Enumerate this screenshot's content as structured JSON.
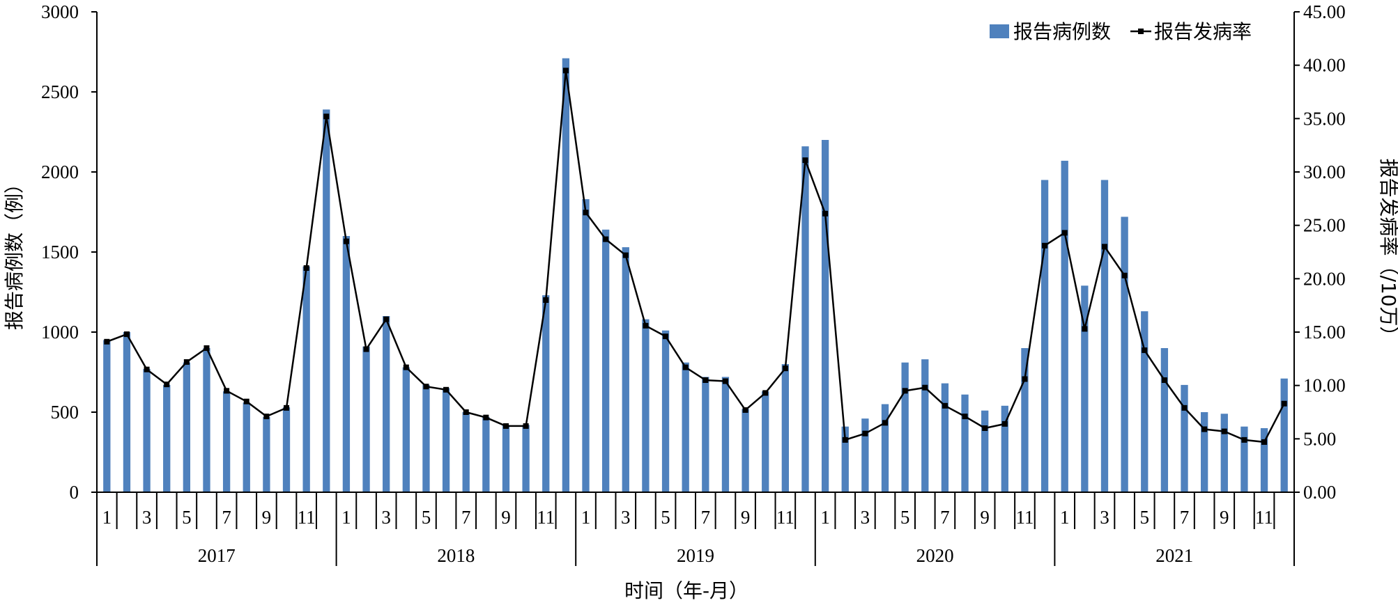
{
  "chart_data": {
    "type": "bar+line",
    "y_left": {
      "label": "报告病例数（例）",
      "range": [
        0,
        3000
      ],
      "ticks": [
        "0",
        "500",
        "1000",
        "1500",
        "2000",
        "2500",
        "3000"
      ]
    },
    "y_right": {
      "label": "报告发病率（/10万）",
      "range": [
        0,
        45
      ],
      "ticks": [
        "0.00",
        "5.00",
        "10.00",
        "15.00",
        "20.00",
        "25.00",
        "30.00",
        "35.00",
        "40.00",
        "45.00"
      ]
    },
    "x_axis": {
      "label": "时间（年-月）",
      "month_labels": [
        "1",
        "",
        "3",
        "",
        "5",
        "",
        "7",
        "",
        "9",
        "",
        "11",
        ""
      ],
      "years": [
        "2017",
        "2018",
        "2019",
        "2020",
        "2021"
      ]
    },
    "legend": {
      "position": "top-right",
      "bar_label": "报告病例数",
      "line_label": "报告发病率"
    },
    "colors": {
      "bar": "#4f81bd",
      "line": "#000000"
    },
    "series": [
      {
        "name": "报告病例数",
        "type": "bar",
        "axis": "left",
        "values": [
          950,
          1000,
          770,
          670,
          810,
          900,
          630,
          560,
          470,
          530,
          1410,
          2390,
          1600,
          910,
          1100,
          780,
          670,
          650,
          500,
          470,
          420,
          420,
          1230,
          2710,
          1830,
          1640,
          1530,
          1080,
          1010,
          810,
          720,
          720,
          520,
          630,
          800,
          2160,
          2200,
          410,
          460,
          550,
          810,
          830,
          680,
          610,
          510,
          540,
          900,
          1950,
          2070,
          1290,
          1950,
          1720,
          1130,
          900,
          670,
          500,
          490,
          410,
          400,
          710
        ]
      },
      {
        "name": "报告发病率",
        "type": "line",
        "axis": "right",
        "values": [
          14.1,
          14.8,
          11.5,
          10.1,
          12.2,
          13.5,
          9.5,
          8.5,
          7.1,
          7.9,
          21.0,
          35.2,
          23.5,
          13.4,
          16.2,
          11.7,
          9.9,
          9.6,
          7.5,
          7.0,
          6.2,
          6.2,
          18.0,
          39.5,
          26.2,
          23.7,
          22.2,
          15.6,
          14.6,
          11.7,
          10.5,
          10.4,
          7.7,
          9.3,
          11.6,
          31.1,
          26.1,
          4.9,
          5.5,
          6.5,
          9.5,
          9.8,
          8.1,
          7.1,
          6.0,
          6.4,
          10.6,
          23.1,
          24.3,
          15.3,
          23.0,
          20.3,
          13.3,
          10.5,
          7.9,
          5.9,
          5.7,
          4.9,
          4.7,
          8.3
        ]
      }
    ]
  }
}
